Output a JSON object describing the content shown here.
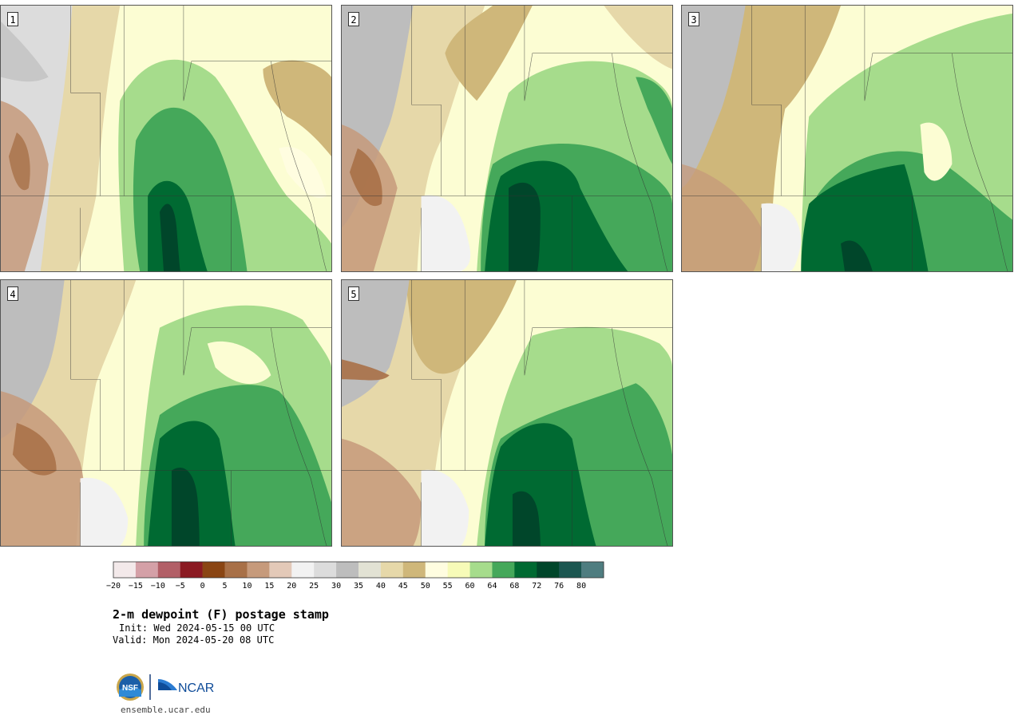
{
  "panels": [
    {
      "label": "1"
    },
    {
      "label": "2"
    },
    {
      "label": "3"
    },
    {
      "label": "4"
    },
    {
      "label": "5"
    }
  ],
  "colorbar": {
    "levels": [
      "−20",
      "−15",
      "−10",
      "−5",
      "0",
      "5",
      "10",
      "15",
      "20",
      "25",
      "30",
      "35",
      "40",
      "45",
      "50",
      "55",
      "60",
      "64",
      "68",
      "72",
      "76",
      "80"
    ],
    "colors": [
      "#f3e9ea",
      "#d4a0a7",
      "#b25f67",
      "#8b1a22",
      "#8a4513",
      "#a87047",
      "#c69a7b",
      "#e3c9b8",
      "#f2f2f2",
      "#dcdcdc",
      "#bdbdbd",
      "#e2e2d4",
      "#e6d8a9",
      "#cfb77a",
      "#fffde0",
      "#f7fbb8",
      "#a6dc8c",
      "#45a85a",
      "#006a32",
      "#00462a",
      "#1b5650",
      "#4f7d80"
    ]
  },
  "title": "2-m dewpoint (F) postage stamp",
  "init": "Init: Wed 2024-05-15 00 UTC",
  "valid": "Valid: Mon 2024-05-20 08 UTC",
  "logos": {
    "nsf": "NSF",
    "ncar": "NCAR"
  },
  "url": "ensemble.ucar.edu"
}
